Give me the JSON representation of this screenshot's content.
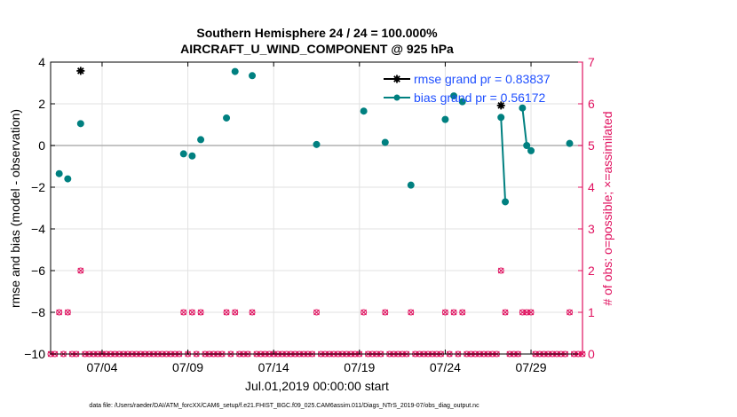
{
  "chart_data": {
    "type": "line",
    "title_line1": "Southern Hemisphere 24 / 24 = 100.000%",
    "title_line2": "AIRCRAFT_U_WIND_COMPONENT @ 925 hPa",
    "xlabel": "Jul.01,2019 00:00:00 start",
    "ylabel_left": "rmse and bias (model - observation)",
    "ylabel_right": "# of obs: o=possible; ×=assimilated",
    "footer": "data file: /Users/raeder/DAI/ATM_forcXX/CAM6_setup/f.e21.FHIST_BGC.f09_025.CAM6assim.011/Diags_NTrS_2019-07/obs_diag_output.nc",
    "xlim": [
      1.0,
      32.0
    ],
    "ylim_left": [
      -10,
      4
    ],
    "ylim_right": [
      0,
      7
    ],
    "x_ticks": [
      4,
      9,
      14,
      19,
      24,
      29
    ],
    "x_tick_labels": [
      "07/04",
      "07/09",
      "07/14",
      "07/19",
      "07/24",
      "07/29"
    ],
    "y_left_ticks": [
      -10,
      -8,
      -6,
      -4,
      -2,
      0,
      2,
      4
    ],
    "y_left_tick_labels": [
      "−10",
      "−8",
      "−6",
      "−4",
      "−2",
      "0",
      "2",
      "4"
    ],
    "y_right_ticks": [
      0,
      1,
      2,
      3,
      4,
      5,
      6,
      7
    ],
    "y_right_tick_labels": [
      "0",
      "1",
      "2",
      "3",
      "4",
      "5",
      "6",
      "7"
    ],
    "grid": true,
    "legend_position": "top-right",
    "colors": {
      "rmse": "#000000",
      "bias": "#008080",
      "obs": "#e0115f",
      "zero": "#b0b0b0",
      "legend_text": "#1f4fff"
    },
    "series": [
      {
        "name": "rmse grand pr = 0.83837",
        "points": [
          [
            2.75,
            3.58
          ],
          [
            27.25,
            1.92
          ]
        ]
      },
      {
        "name": "bias grand pr = 0.56172",
        "points": [
          [
            1.5,
            -1.35
          ],
          [
            2.0,
            -1.6
          ],
          [
            2.75,
            1.05
          ],
          [
            8.75,
            -0.4
          ],
          [
            9.25,
            -0.5
          ],
          [
            9.75,
            0.28
          ],
          [
            11.25,
            1.32
          ],
          [
            11.75,
            3.55
          ],
          [
            12.75,
            3.35
          ],
          [
            16.5,
            0.05
          ],
          [
            19.25,
            1.65
          ],
          [
            20.5,
            0.15
          ],
          [
            22.0,
            -1.9
          ],
          [
            24.0,
            1.25
          ],
          [
            24.5,
            2.38
          ],
          [
            25.0,
            2.1
          ],
          [
            27.25,
            1.35
          ],
          [
            27.5,
            -2.7
          ],
          [
            28.5,
            1.8
          ],
          [
            28.75,
            0.0
          ],
          [
            29.0,
            -0.25
          ],
          [
            31.25,
            0.1
          ]
        ],
        "connected_segments": [
          [
            [
              27.25,
              1.35
            ],
            [
              27.5,
              -2.7
            ]
          ],
          [
            [
              28.5,
              1.8
            ],
            [
              28.75,
              0.0
            ],
            [
              29.0,
              -0.25
            ]
          ]
        ]
      }
    ],
    "obs_possible": [
      [
        1.5,
        1
      ],
      [
        2.0,
        1
      ],
      [
        2.75,
        2
      ],
      [
        8.75,
        1
      ],
      [
        9.25,
        1
      ],
      [
        9.75,
        1
      ],
      [
        11.25,
        1
      ],
      [
        11.75,
        1
      ],
      [
        12.75,
        1
      ],
      [
        16.5,
        1
      ],
      [
        19.25,
        1
      ],
      [
        20.5,
        1
      ],
      [
        22.0,
        1
      ],
      [
        24.0,
        1
      ],
      [
        24.5,
        1
      ],
      [
        25.0,
        1
      ],
      [
        27.25,
        2
      ],
      [
        27.5,
        1
      ],
      [
        28.5,
        1
      ],
      [
        28.75,
        1
      ],
      [
        29.0,
        1
      ],
      [
        31.25,
        1
      ]
    ],
    "obs_zero_bin_width": 0.25
  }
}
